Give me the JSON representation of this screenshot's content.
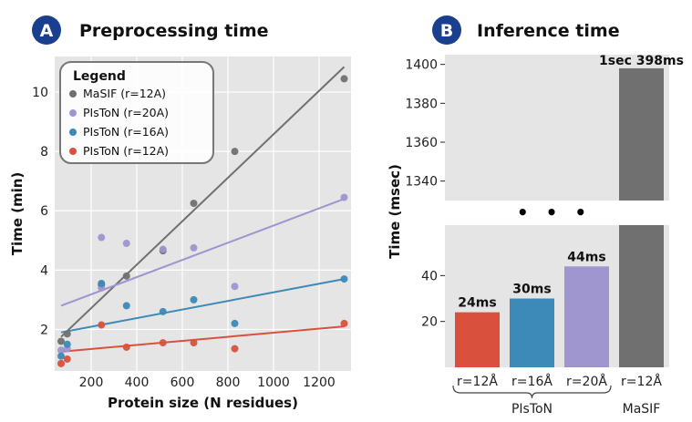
{
  "colors": {
    "background": "#e5e5e5",
    "grid": "#ffffff",
    "badge": "#1b3f8f",
    "masif": "#707070",
    "pistun_r20": "#9f95cf",
    "pistun_r16": "#3d89b7",
    "pistun_r12": "#d9513d"
  },
  "panel_a": {
    "badge": "A",
    "title": "Preprocessing time"
  },
  "panel_b": {
    "badge": "B",
    "title": "Inference time",
    "break_marker": "• • •"
  },
  "chart_data": [
    {
      "type": "scatter",
      "xlabel": "Protein size (N residues)",
      "ylabel": "Time (min)",
      "xlim": [
        40,
        1340
      ],
      "ylim": [
        0.6,
        11.2
      ],
      "xticks": [
        200,
        400,
        600,
        800,
        1000,
        1200
      ],
      "yticks": [
        2,
        4,
        6,
        8,
        10
      ],
      "grid": true,
      "legend": {
        "title": "Legend",
        "placement": "top-left",
        "entries": [
          "MaSIF  (r=12A)",
          "PIsToN (r=20A)",
          "PIsToN (r=16A)",
          "PIsToN (r=12A)"
        ]
      },
      "series": [
        {
          "name": "MaSIF  (r=12A)",
          "color": "#707070",
          "points": [
            [
              68,
              1.6
            ],
            [
              95,
              1.85
            ],
            [
              245,
              3.5
            ],
            [
              355,
              3.8
            ],
            [
              515,
              4.65
            ],
            [
              650,
              6.25
            ],
            [
              830,
              8.0
            ],
            [
              1310,
              10.45
            ]
          ],
          "trend": [
            [
              68,
              1.75
            ],
            [
              1310,
              10.85
            ]
          ]
        },
        {
          "name": "PIsToN (r=20A)",
          "color": "#9f95cf",
          "points": [
            [
              68,
              1.3
            ],
            [
              95,
              1.35
            ],
            [
              245,
              5.1
            ],
            [
              245,
              3.4
            ],
            [
              355,
              4.9
            ],
            [
              515,
              4.7
            ],
            [
              650,
              4.75
            ],
            [
              830,
              3.45
            ],
            [
              1310,
              6.45
            ]
          ],
          "trend": [
            [
              68,
              2.8
            ],
            [
              1310,
              6.4
            ]
          ]
        },
        {
          "name": "PIsToN (r=16A)",
          "color": "#3d89b7",
          "points": [
            [
              68,
              1.1
            ],
            [
              95,
              1.5
            ],
            [
              245,
              3.55
            ],
            [
              355,
              2.8
            ],
            [
              515,
              2.6
            ],
            [
              650,
              3.0
            ],
            [
              830,
              2.2
            ],
            [
              1310,
              3.7
            ]
          ],
          "trend": [
            [
              68,
              1.9
            ],
            [
              1310,
              3.7
            ]
          ]
        },
        {
          "name": "PIsToN (r=12A)",
          "color": "#d9513d",
          "points": [
            [
              68,
              0.85
            ],
            [
              95,
              1.0
            ],
            [
              245,
              2.15
            ],
            [
              355,
              1.4
            ],
            [
              515,
              1.55
            ],
            [
              650,
              1.55
            ],
            [
              830,
              1.35
            ],
            [
              1310,
              2.2
            ]
          ],
          "trend": [
            [
              68,
              1.25
            ],
            [
              1310,
              2.1
            ]
          ]
        }
      ]
    },
    {
      "type": "bar",
      "ylabel": "Time (msec)",
      "categories": [
        "r=12Å",
        "r=16Å",
        "r=20Å",
        "r=12Å"
      ],
      "groups": [
        {
          "label": "PIsToN",
          "span": [
            0,
            2
          ]
        },
        {
          "label": "MaSIF",
          "span": [
            3,
            3
          ]
        }
      ],
      "values": [
        24,
        30,
        44,
        1398
      ],
      "value_labels": [
        "24ms",
        "30ms",
        "44ms",
        "1sec 398ms"
      ],
      "colors": [
        "#d9513d",
        "#3d89b7",
        "#9f95cf",
        "#707070"
      ],
      "broken_axis": {
        "lower_ylim": [
          0,
          62
        ],
        "upper_ylim": [
          1330,
          1405
        ],
        "lower_yticks": [
          20,
          40
        ],
        "upper_yticks": [
          1340,
          1360,
          1380,
          1400
        ]
      },
      "grid": false
    }
  ]
}
